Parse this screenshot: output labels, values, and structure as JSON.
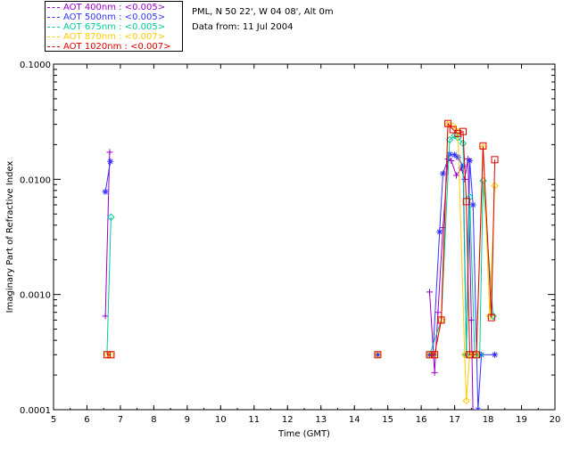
{
  "header": {
    "location": "PML, N 50 22', W 04 08', Alt 0m",
    "date": "Data from: 11 Jul 2004"
  },
  "legend": [
    {
      "label": "AOT  400nm : ",
      "note": "<0.005>",
      "color": "#9900cc"
    },
    {
      "label": "AOT  500nm : ",
      "note": "<0.005>",
      "color": "#3333ff"
    },
    {
      "label": "AOT  675nm : ",
      "note": "<0.005>",
      "color": "#00cc99"
    },
    {
      "label": "AOT  870nm : ",
      "note": "<0.007>",
      "color": "#ffcc00"
    },
    {
      "label": "AOT 1020nm : ",
      "note": "<0.007>",
      "color": "#dd0000"
    }
  ],
  "chart_data": {
    "type": "line",
    "xlabel": "Time (GMT)",
    "ylabel": "Imaginary Part of Refractive Index",
    "xlim": [
      5,
      20
    ],
    "ylim": [
      0.0001,
      0.1
    ],
    "yscale": "log",
    "xticks": [
      "5",
      "6",
      "7",
      "8",
      "9",
      "10",
      "11",
      "12",
      "13",
      "14",
      "15",
      "16",
      "17",
      "18",
      "19",
      "20"
    ],
    "yticks": [
      "0.0001",
      "0.0010",
      "0.0100",
      "0.1000"
    ],
    "series": [
      {
        "name": "AOT  400nm",
        "color": "#9900cc",
        "marker": "plus",
        "segments": [
          [
            [
              6.55,
              0.00065
            ],
            [
              6.68,
              0.0172
            ]
          ],
          [
            [
              16.25,
              0.00105
            ],
            [
              16.4,
              0.00021
            ],
            [
              16.5,
              0.0007
            ],
            [
              16.65,
              0.0038
            ],
            [
              16.8,
              0.015
            ],
            [
              16.9,
              0.0145
            ],
            [
              17.05,
              0.0108
            ],
            [
              17.2,
              0.0125
            ],
            [
              17.3,
              0.01
            ],
            [
              17.4,
              0.015
            ],
            [
              17.5,
              0.0006
            ],
            [
              17.55,
              9e-05
            ]
          ]
        ]
      },
      {
        "name": "AOT  500nm",
        "color": "#3333ff",
        "marker": "star",
        "segments": [
          [
            [
              6.55,
              0.0078
            ],
            [
              6.7,
              0.0143
            ]
          ],
          [
            [
              16.25,
              0.0003
            ],
            [
              16.35,
              0.0003
            ],
            [
              16.55,
              0.0035
            ],
            [
              16.65,
              0.0112
            ],
            [
              16.85,
              0.0165
            ],
            [
              17.0,
              0.0163
            ],
            [
              17.1,
              0.0155
            ],
            [
              17.25,
              0.013
            ],
            [
              17.35,
              0.0003
            ],
            [
              17.45,
              0.0145
            ],
            [
              17.55,
              0.006
            ],
            [
              17.7,
              0.0001
            ],
            [
              17.8,
              0.0003
            ],
            [
              18.2,
              0.0003
            ]
          ],
          [
            [
              14.7,
              0.0003
            ]
          ]
        ]
      },
      {
        "name": "AOT  675nm",
        "color": "#00cc99",
        "marker": "diamond",
        "segments": [
          [
            [
              6.6,
              0.0003
            ],
            [
              6.72,
              0.0047
            ]
          ],
          [
            [
              16.25,
              0.0003
            ],
            [
              16.6,
              0.0006
            ],
            [
              16.85,
              0.022
            ],
            [
              17.0,
              0.024
            ],
            [
              17.1,
              0.023
            ],
            [
              17.25,
              0.0205
            ],
            [
              17.35,
              0.0003
            ],
            [
              17.45,
              0.007
            ],
            [
              17.6,
              0.0003
            ],
            [
              17.75,
              0.0003
            ],
            [
              17.85,
              0.0097
            ],
            [
              18.15,
              0.00065
            ]
          ],
          [
            [
              14.7,
              0.0003
            ]
          ]
        ]
      },
      {
        "name": "AOT  870nm",
        "color": "#ffcc00",
        "marker": "diamond",
        "segments": [
          [
            [
              6.6,
              0.0003
            ],
            [
              6.72,
              0.0003
            ]
          ],
          [
            [
              16.25,
              0.0003
            ],
            [
              16.4,
              0.0003
            ],
            [
              16.6,
              0.0006
            ],
            [
              16.8,
              0.03
            ],
            [
              16.95,
              0.029
            ],
            [
              17.1,
              0.026
            ],
            [
              17.3,
              0.0003
            ],
            [
              17.35,
              0.00012
            ],
            [
              17.45,
              0.0003
            ],
            [
              17.65,
              0.0003
            ],
            [
              17.85,
              0.019
            ],
            [
              18.05,
              0.00065
            ],
            [
              18.2,
              0.0088
            ]
          ],
          [
            [
              14.7,
              0.0003
            ]
          ]
        ]
      },
      {
        "name": "AOT 1020nm",
        "color": "#dd0000",
        "marker": "square",
        "segments": [
          [
            [
              6.6,
              0.0003
            ],
            [
              6.72,
              0.0003
            ]
          ],
          [
            [
              16.25,
              0.0003
            ],
            [
              16.4,
              0.0003
            ],
            [
              16.6,
              0.0006
            ],
            [
              16.8,
              0.0305
            ],
            [
              16.95,
              0.027
            ],
            [
              17.1,
              0.025
            ],
            [
              17.25,
              0.026
            ],
            [
              17.35,
              0.0064
            ],
            [
              17.45,
              0.0003
            ],
            [
              17.65,
              0.0003
            ],
            [
              17.85,
              0.0195
            ],
            [
              18.1,
              0.00063
            ],
            [
              18.2,
              0.0148
            ]
          ],
          [
            [
              14.7,
              0.0003
            ]
          ]
        ]
      }
    ]
  }
}
